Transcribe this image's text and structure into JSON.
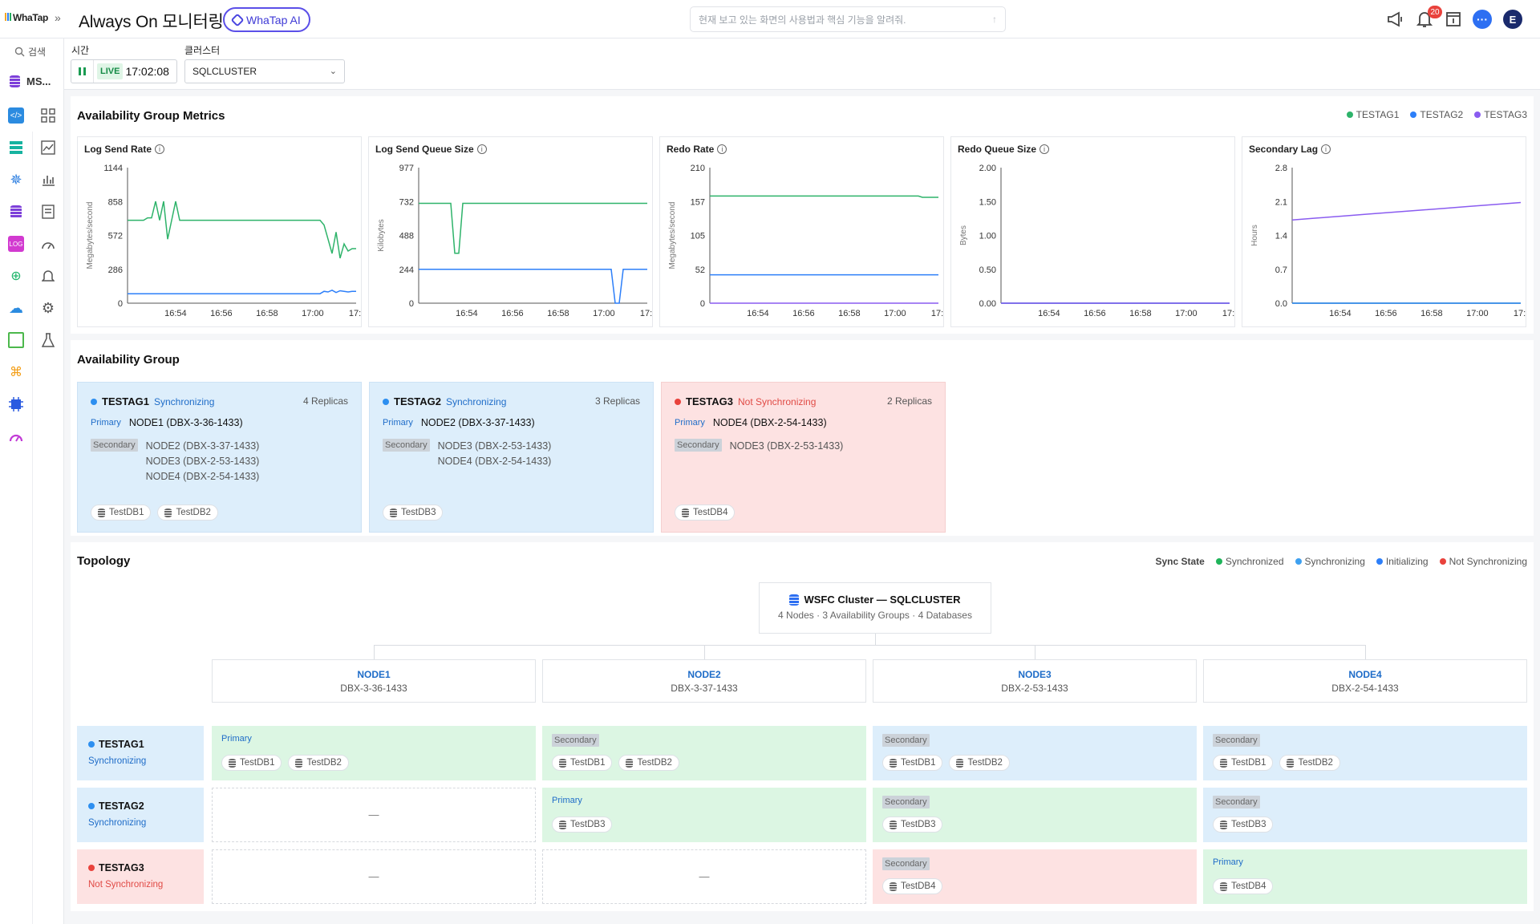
{
  "header": {
    "logo": "WhaTap",
    "title": "Always On 모니터링",
    "ai_button": "WhaTap AI",
    "search_placeholder": "현재 보고 있는 화면의 사용법과 핵심 기능을 알려줘.",
    "notification_count": "20",
    "avatar_initial": "E"
  },
  "sidebar": {
    "search_label": "검색",
    "product": "MS..."
  },
  "filters": {
    "time_label": "시간",
    "live_label": "LIVE",
    "live_time": "17:02:08",
    "cluster_label": "클러스터",
    "cluster_value": "SQLCLUSTER"
  },
  "metrics": {
    "title": "Availability Group Metrics",
    "legend": [
      {
        "name": "TESTAG1",
        "color": "#2eb36a"
      },
      {
        "name": "TESTAG2",
        "color": "#2d7ff9"
      },
      {
        "name": "TESTAG3",
        "color": "#8a5cf0"
      }
    ]
  },
  "chart_data": [
    {
      "type": "line",
      "title": "Log Send Rate",
      "ylabel": "Megabytes/second",
      "yticks": [
        "1144",
        "858",
        "572",
        "286",
        "0"
      ],
      "ylim": [
        0,
        1144
      ],
      "xticks": [
        "16:54",
        "16:56",
        "16:58",
        "17:00",
        "17:"
      ],
      "series": [
        {
          "name": "TESTAG1",
          "color": "#2eb36a",
          "values": [
            700,
            700,
            700,
            700,
            700,
            720,
            720,
            860,
            700,
            860,
            540,
            700,
            860,
            700,
            700,
            700,
            700,
            700,
            700,
            700,
            700,
            700,
            700,
            700,
            700,
            700,
            700,
            700,
            700,
            700,
            700,
            700,
            700,
            700,
            700,
            700,
            700,
            700,
            700,
            700,
            700,
            700,
            700,
            700,
            700,
            700,
            700,
            700,
            700,
            660,
            540,
            420,
            600,
            380,
            500,
            440,
            460,
            460
          ]
        },
        {
          "name": "TESTAG2",
          "color": "#2d7ff9",
          "values": [
            80,
            80,
            80,
            80,
            80,
            80,
            80,
            80,
            80,
            80,
            80,
            80,
            80,
            80,
            80,
            80,
            80,
            80,
            80,
            80,
            80,
            80,
            80,
            80,
            80,
            80,
            80,
            80,
            80,
            80,
            80,
            80,
            80,
            80,
            80,
            80,
            80,
            80,
            80,
            80,
            80,
            80,
            80,
            80,
            80,
            80,
            80,
            80,
            80,
            100,
            95,
            110,
            90,
            105,
            100,
            95,
            100,
            100
          ]
        }
      ]
    },
    {
      "type": "line",
      "title": "Log Send Queue Size",
      "ylabel": "Kilobytes",
      "yticks": [
        "977",
        "732",
        "488",
        "244",
        "0"
      ],
      "ylim": [
        0,
        977
      ],
      "xticks": [
        "16:54",
        "16:56",
        "16:58",
        "17:00",
        "17:"
      ],
      "series": [
        {
          "name": "TESTAG1",
          "color": "#2eb36a",
          "values": [
            720,
            720,
            720,
            720,
            720,
            720,
            720,
            720,
            720,
            360,
            360,
            720,
            720,
            720,
            720,
            720,
            720,
            720,
            720,
            720,
            720,
            720,
            720,
            720,
            720,
            720,
            720,
            720,
            720,
            720,
            720,
            720,
            720,
            720,
            720,
            720,
            720,
            720,
            720,
            720,
            720,
            720,
            720,
            720,
            720,
            720,
            720,
            720,
            720,
            720,
            720,
            720,
            720,
            720,
            720,
            720,
            720,
            720
          ]
        },
        {
          "name": "TESTAG2",
          "color": "#2d7ff9",
          "values": [
            244,
            244,
            244,
            244,
            244,
            244,
            244,
            244,
            244,
            244,
            244,
            244,
            244,
            244,
            244,
            244,
            244,
            244,
            244,
            244,
            244,
            244,
            244,
            244,
            244,
            244,
            244,
            244,
            244,
            244,
            244,
            244,
            244,
            244,
            244,
            244,
            244,
            244,
            244,
            244,
            244,
            244,
            244,
            244,
            244,
            244,
            244,
            244,
            244,
            0,
            0,
            244,
            244,
            244,
            244,
            244,
            244,
            244
          ]
        }
      ]
    },
    {
      "type": "line",
      "title": "Redo Rate",
      "ylabel": "Megabytes/second",
      "yticks": [
        "210",
        "157",
        "105",
        "52",
        "0"
      ],
      "ylim": [
        0,
        210
      ],
      "xticks": [
        "16:54",
        "16:56",
        "16:58",
        "17:00",
        "17:"
      ],
      "series": [
        {
          "name": "TESTAG1",
          "color": "#2eb36a",
          "values": [
            166,
            166,
            166,
            166,
            166,
            166,
            166,
            166,
            166,
            166,
            166,
            166,
            166,
            166,
            166,
            166,
            166,
            166,
            166,
            166,
            166,
            166,
            166,
            166,
            166,
            166,
            166,
            166,
            166,
            166,
            166,
            166,
            166,
            166,
            166,
            166,
            166,
            166,
            166,
            166,
            166,
            166,
            166,
            166,
            166,
            166,
            166,
            166,
            166,
            166,
            166,
            166,
            166,
            164,
            164,
            164,
            164,
            164
          ]
        },
        {
          "name": "TESTAG2",
          "color": "#2d7ff9",
          "values": [
            44,
            44,
            44,
            44,
            44,
            44,
            44,
            44,
            44,
            44,
            44,
            44,
            44,
            44,
            44,
            44,
            44,
            44,
            44,
            44,
            44,
            44,
            44,
            44,
            44,
            44,
            44,
            44,
            44,
            44,
            44,
            44,
            44,
            44,
            44,
            44,
            44,
            44,
            44,
            44,
            44,
            44,
            44,
            44,
            44,
            44,
            44,
            44,
            44,
            44,
            44,
            44,
            44,
            44,
            44,
            44,
            44,
            44
          ]
        },
        {
          "name": "TESTAG3",
          "color": "#8a5cf0",
          "values": [
            0,
            0,
            0,
            0,
            0,
            0,
            0,
            0,
            0,
            0,
            0,
            0,
            0,
            0,
            0,
            0,
            0,
            0,
            0,
            0,
            0,
            0,
            0,
            0,
            0,
            0,
            0,
            0,
            0,
            0,
            0,
            0,
            0,
            0,
            0,
            0,
            0,
            0,
            0,
            0,
            0,
            0,
            0,
            0,
            0,
            0,
            0,
            0,
            0,
            0,
            0,
            0,
            0,
            0,
            0,
            0,
            0,
            0
          ]
        }
      ]
    },
    {
      "type": "line",
      "title": "Redo Queue Size",
      "ylabel": "Bytes",
      "yticks": [
        "2.00",
        "1.50",
        "1.00",
        "0.50",
        "0.00"
      ],
      "ylim": [
        0,
        2
      ],
      "xticks": [
        "16:54",
        "16:56",
        "16:58",
        "17:00",
        "17:"
      ],
      "series": [
        {
          "name": "TESTAG1",
          "color": "#2eb36a",
          "values": [
            0,
            0
          ]
        },
        {
          "name": "TESTAG2",
          "color": "#2d7ff9",
          "values": [
            0,
            0
          ]
        },
        {
          "name": "TESTAG3",
          "color": "#8a5cf0",
          "values": [
            0,
            0
          ]
        }
      ]
    },
    {
      "type": "line",
      "title": "Secondary Lag",
      "ylabel": "Hours",
      "yticks": [
        "2.8",
        "2.1",
        "1.4",
        "0.7",
        "0.0"
      ],
      "ylim": [
        0,
        2.8
      ],
      "xticks": [
        "16:54",
        "16:56",
        "16:58",
        "17:00",
        "17:"
      ],
      "series": [
        {
          "name": "TESTAG1",
          "color": "#2eb36a",
          "values": [
            0,
            0
          ]
        },
        {
          "name": "TESTAG2",
          "color": "#2d7ff9",
          "values": [
            0,
            0
          ]
        },
        {
          "name": "TESTAG3",
          "color": "#8a5cf0",
          "values": [
            1.72,
            1.76,
            1.8,
            1.84,
            1.88,
            1.92,
            1.96,
            2.0,
            2.04,
            2.08
          ]
        }
      ]
    }
  ],
  "availability_group": {
    "title": "Availability Group",
    "primary_label": "Primary",
    "secondary_label": "Secondary",
    "groups": [
      {
        "name": "TESTAG1",
        "state": "Synchronizing",
        "replicas": "4 Replicas",
        "primary": "NODE1 (DBX-3-36-1433)",
        "secondary": [
          "NODE2 (DBX-3-37-1433)",
          "NODE3 (DBX-2-53-1433)",
          "NODE4 (DBX-2-54-1433)"
        ],
        "databases": [
          "TestDB1",
          "TestDB2"
        ]
      },
      {
        "name": "TESTAG2",
        "state": "Synchronizing",
        "replicas": "3 Replicas",
        "primary": "NODE2 (DBX-3-37-1433)",
        "secondary": [
          "NODE3 (DBX-2-53-1433)",
          "NODE4 (DBX-2-54-1433)"
        ],
        "databases": [
          "TestDB3"
        ]
      },
      {
        "name": "TESTAG3",
        "state": "Not Synchronizing",
        "replicas": "2 Replicas",
        "primary": "NODE4 (DBX-2-54-1433)",
        "secondary": [
          "NODE3 (DBX-2-53-1433)"
        ],
        "databases": [
          "TestDB4"
        ]
      }
    ]
  },
  "topology": {
    "title": "Topology",
    "sync_state_label": "Sync State",
    "sync_legend": [
      {
        "name": "Synchronized",
        "color": "#1fb45a"
      },
      {
        "name": "Synchronizing",
        "color": "#3ea0f0"
      },
      {
        "name": "Initializing",
        "color": "#2d7ff9"
      },
      {
        "name": "Not Synchronizing",
        "color": "#e9423c"
      }
    ],
    "cluster_title": "WSFC Cluster — SQLCLUSTER",
    "cluster_summary": "4 Nodes · 3 Availability Groups · 4 Databases",
    "nodes": [
      {
        "name": "NODE1",
        "host": "DBX-3-36-1433"
      },
      {
        "name": "NODE2",
        "host": "DBX-3-37-1433"
      },
      {
        "name": "NODE3",
        "host": "DBX-2-53-1433"
      },
      {
        "name": "NODE4",
        "host": "DBX-2-54-1433"
      }
    ],
    "empty_mark": "—",
    "rows": [
      {
        "name": "TESTAG1",
        "state": "Synchronizing",
        "cells": [
          {
            "role": "Primary",
            "dbs": [
              "TestDB1",
              "TestDB2"
            ],
            "color": "green"
          },
          {
            "role": "Secondary",
            "dbs": [
              "TestDB1",
              "TestDB2"
            ],
            "color": "green"
          },
          {
            "role": "Secondary",
            "dbs": [
              "TestDB1",
              "TestDB2"
            ],
            "color": "blue"
          },
          {
            "role": "Secondary",
            "dbs": [
              "TestDB1",
              "TestDB2"
            ],
            "color": "blue"
          }
        ]
      },
      {
        "name": "TESTAG2",
        "state": "Synchronizing",
        "cells": [
          {
            "role": "",
            "dbs": [],
            "color": "empty"
          },
          {
            "role": "Primary",
            "dbs": [
              "TestDB3"
            ],
            "color": "green"
          },
          {
            "role": "Secondary",
            "dbs": [
              "TestDB3"
            ],
            "color": "green"
          },
          {
            "role": "Secondary",
            "dbs": [
              "TestDB3"
            ],
            "color": "blue"
          }
        ]
      },
      {
        "name": "TESTAG3",
        "state": "Not Synchronizing",
        "cells": [
          {
            "role": "",
            "dbs": [],
            "color": "empty"
          },
          {
            "role": "",
            "dbs": [],
            "color": "empty"
          },
          {
            "role": "Secondary",
            "dbs": [
              "TestDB4"
            ],
            "color": "red"
          },
          {
            "role": "Primary",
            "dbs": [
              "TestDB4"
            ],
            "color": "green"
          }
        ]
      }
    ]
  }
}
